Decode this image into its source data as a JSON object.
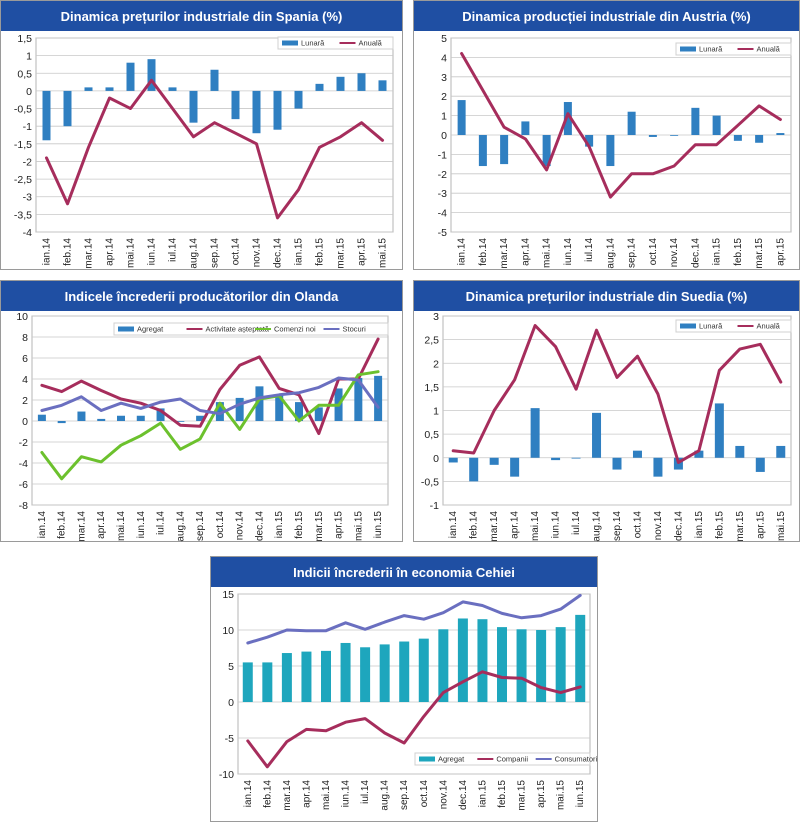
{
  "colors": {
    "header": "#1f4fa3",
    "blue_bar": "#2f7fc1",
    "cyan_bar": "#1ea6bd",
    "maroon": "#a62d5c",
    "green": "#6cc12d",
    "slate": "#6a6fc0",
    "grid": "#c8c8c8"
  },
  "chart_data": [
    {
      "id": "spain",
      "type": "bar+line",
      "title": "Dinamica prețurilor industriale din Spania (%)",
      "categories": [
        "ian.14",
        "feb.14",
        "mar.14",
        "apr.14",
        "mai.14",
        "iun.14",
        "iul.14",
        "aug.14",
        "sep.14",
        "oct.14",
        "nov.14",
        "dec.14",
        "ian.15",
        "feb.15",
        "mar.15",
        "apr.15",
        "mai.15"
      ],
      "x_tick_labels": [
        "ian.14",
        "feb.14",
        "mar.14",
        "apr.14",
        "mai.14",
        "iun.14",
        "iul.14",
        "aug.14",
        "sep.14",
        "oct.14",
        "nov.14",
        "dec.14",
        "ian.15",
        "feb.15",
        "mar.15",
        "apr.15",
        "mai.15"
      ],
      "y_ticks": [
        "1,5",
        "1",
        "0,5",
        "0",
        "-0,5",
        "-1",
        "-1,5",
        "-2",
        "-2,5",
        "-3",
        "-3,5",
        "-4"
      ],
      "ylim": [
        -4,
        1.5
      ],
      "legend": [
        "Lunară",
        "Anuală"
      ],
      "bars": [
        {
          "name": "Lunară",
          "values": [
            -1.4,
            -1.0,
            0.1,
            0.1,
            0.8,
            0.9,
            0.1,
            -0.9,
            0.6,
            -0.8,
            -1.2,
            -1.1,
            -0.5,
            0.2,
            0.4,
            0.5,
            0.3
          ]
        }
      ],
      "lines": [
        {
          "name": "Anuală",
          "values": [
            -1.9,
            -3.2,
            -1.6,
            -0.2,
            -0.5,
            0.3,
            -0.5,
            -1.3,
            -0.9,
            -1.2,
            -1.5,
            -3.6,
            -2.8,
            -1.6,
            -1.3,
            -0.9,
            -1.4
          ]
        }
      ]
    },
    {
      "id": "austria",
      "type": "bar+line",
      "title": "Dinamica producției industriale din Austria (%)",
      "categories": [
        "ian.14",
        "feb.14",
        "mar.14",
        "apr.14",
        "mai.14",
        "iun.14",
        "iul.14",
        "aug.14",
        "sep.14",
        "oct.14",
        "nov.14",
        "dec.14",
        "ian.15",
        "feb.15",
        "mar.15",
        "apr.15"
      ],
      "x_tick_labels": [
        "ian.14",
        "feb.14",
        "mar.14",
        "apr.14",
        "mai.14",
        "iun.14",
        "iul.14",
        "aug.14",
        "sep.14",
        "oct.14",
        "nov.14",
        "dec.14",
        "ian.15",
        "feb.15",
        "mar.15",
        "apr.15"
      ],
      "y_ticks": [
        "5",
        "4",
        "3",
        "2",
        "1",
        "0",
        "-1",
        "-2",
        "-3",
        "-4",
        "-5"
      ],
      "ylim": [
        -5,
        5
      ],
      "legend": [
        "Lunară",
        "Anuală"
      ],
      "bars": [
        {
          "name": "Lunară",
          "values": [
            1.8,
            -1.6,
            -1.5,
            0.7,
            -1.6,
            1.7,
            -0.6,
            -1.6,
            1.2,
            -0.1,
            0.0,
            1.4,
            1.0,
            -0.3,
            -0.4,
            0.1
          ]
        }
      ],
      "lines": [
        {
          "name": "Anuală",
          "values": [
            4.2,
            2.3,
            0.4,
            -0.2,
            -1.8,
            1.1,
            -0.6,
            -3.2,
            -2.0,
            -2.0,
            -1.6,
            -0.5,
            -0.5,
            0.5,
            1.5,
            0.8
          ]
        }
      ]
    },
    {
      "id": "olanda",
      "type": "bar+line",
      "title": "Indicele încrederii producătorilor din Olanda",
      "categories": [
        "ian.14",
        "feb.14",
        "mar.14",
        "apr.14",
        "mai.14",
        "iun.14",
        "iul.14",
        "aug.14",
        "sep.14",
        "oct.14",
        "nov.14",
        "dec.14",
        "ian.15",
        "feb.15",
        "mar.15",
        "apr.15",
        "mai.15",
        "iun.15"
      ],
      "x_tick_labels": [
        "ian.14",
        "feb.14",
        "mar.14",
        "apr.14",
        "mai.14",
        "iun.14",
        "iul.14",
        "aug.14",
        "sep.14",
        "oct.14",
        "nov.14",
        "dec.14",
        "ian.15",
        "feb.15",
        "mar.15",
        "apr.15",
        "mai.15",
        "iun.15"
      ],
      "y_ticks": [
        "10",
        "8",
        "6",
        "4",
        "2",
        "0",
        "-2",
        "-4",
        "-6",
        "-8"
      ],
      "ylim": [
        -8,
        10
      ],
      "legend": [
        "Agregat",
        "Activitate așteptată",
        "Comenzi noi",
        "Stocuri"
      ],
      "bars": [
        {
          "name": "Agregat",
          "values": [
            0.6,
            -0.2,
            0.9,
            0.2,
            0.5,
            0.5,
            1.2,
            0.0,
            0.5,
            1.8,
            2.2,
            3.3,
            2.5,
            1.8,
            1.3,
            3.1,
            4.1,
            4.3
          ]
        }
      ],
      "lines": [
        {
          "name": "Activitate așteptată",
          "values": [
            3.4,
            2.8,
            3.8,
            2.9,
            2.1,
            1.7,
            1.0,
            -0.4,
            -0.5,
            3.0,
            5.3,
            6.1,
            3.1,
            2.5,
            -1.2,
            4.0,
            4.0,
            7.8
          ]
        },
        {
          "name": "Comenzi noi",
          "values": [
            -3.0,
            -5.5,
            -3.4,
            -3.9,
            -2.3,
            -1.4,
            -0.2,
            -2.7,
            -1.7,
            1.7,
            -0.8,
            2.1,
            2.4,
            0.0,
            1.5,
            1.5,
            4.4,
            4.7
          ]
        },
        {
          "name": "Stocuri",
          "values": [
            1.0,
            1.5,
            2.3,
            1.0,
            1.7,
            1.2,
            1.8,
            2.1,
            1.0,
            0.7,
            1.6,
            2.2,
            2.5,
            2.7,
            3.2,
            4.1,
            3.9,
            1.3
          ]
        }
      ]
    },
    {
      "id": "suedia",
      "type": "bar+line",
      "title": "Dinamica prețurilor industriale din Suedia (%)",
      "categories": [
        "ian.14",
        "feb.14",
        "mar.14",
        "apr.14",
        "mai.14",
        "iun.14",
        "iul.14",
        "aug.14",
        "sep.14",
        "oct.14",
        "nov.14",
        "dec.14",
        "ian.15",
        "feb.15",
        "mar.15",
        "apr.15",
        "mai.15"
      ],
      "x_tick_labels": [
        "ian.14",
        "feb.14",
        "mar.14",
        "apr.14",
        "mai.14",
        "iun.14",
        "iul.14",
        "aug.14",
        "sep.14",
        "oct.14",
        "nov.14",
        "dec.14",
        "ian.15",
        "feb.15",
        "mar.15",
        "apr.15",
        "mai.15"
      ],
      "y_ticks": [
        "3",
        "2,5",
        "2",
        "1,5",
        "1",
        "0,5",
        "0",
        "-0,5",
        "-1"
      ],
      "ylim": [
        -1,
        3
      ],
      "legend": [
        "Lunară",
        "Anuală"
      ],
      "bars": [
        {
          "name": "Lunară",
          "values": [
            -0.1,
            -0.5,
            -0.15,
            -0.4,
            1.05,
            -0.05,
            0.0,
            0.95,
            -0.25,
            0.15,
            -0.4,
            -0.25,
            0.15,
            1.15,
            0.25,
            -0.3,
            0.25
          ]
        }
      ],
      "lines": [
        {
          "name": "Anuală",
          "values": [
            0.15,
            0.1,
            1.0,
            1.65,
            2.8,
            2.35,
            1.45,
            2.7,
            1.7,
            2.15,
            1.35,
            -0.1,
            0.15,
            1.85,
            2.3,
            2.4,
            1.6
          ]
        }
      ]
    },
    {
      "id": "cehia",
      "type": "bar+line",
      "title": "Indicii încrederii în economia Cehiei",
      "categories": [
        "ian.14",
        "feb.14",
        "mar.14",
        "apr.14",
        "mai.14",
        "iun.14",
        "iul.14",
        "aug.14",
        "sep.14",
        "oct.14",
        "nov.14",
        "dec.14",
        "ian.15",
        "feb.15",
        "mar.15",
        "apr.15",
        "mai.15",
        "iun.15"
      ],
      "x_tick_labels": [
        "ian.14",
        "feb.14",
        "mar.14",
        "apr.14",
        "mai.14",
        "iun.14",
        "iul.14",
        "aug.14",
        "sep.14",
        "oct.14",
        "nov.14",
        "dec.14",
        "ian.15",
        "feb.15",
        "mar.15",
        "apr.15",
        "mai.15",
        "iun.15"
      ],
      "y_ticks": [
        "15",
        "10",
        "5",
        "0",
        "-5",
        "-10"
      ],
      "ylim": [
        -10,
        15
      ],
      "legend": [
        "Agregat",
        "Companii",
        "Consumatori"
      ],
      "bars": [
        {
          "name": "Agregat",
          "values": [
            5.5,
            5.5,
            6.8,
            7.0,
            7.1,
            8.2,
            7.6,
            8.0,
            8.4,
            8.8,
            10.1,
            11.6,
            11.5,
            10.4,
            10.1,
            10.0,
            10.4,
            12.1
          ]
        }
      ],
      "lines": [
        {
          "name": "Companii",
          "values": [
            -5.4,
            -9.0,
            -5.5,
            -3.8,
            -4.0,
            -2.8,
            -2.3,
            -4.3,
            -5.7,
            -2.0,
            1.3,
            2.8,
            4.2,
            3.4,
            3.3,
            2.0,
            1.3,
            2.1
          ]
        },
        {
          "name": "Consumatori",
          "values": [
            8.2,
            9.0,
            10.0,
            9.9,
            9.9,
            11.0,
            10.1,
            11.1,
            12.0,
            11.5,
            12.4,
            13.9,
            13.4,
            12.3,
            11.7,
            12.0,
            12.9,
            14.8
          ]
        }
      ]
    }
  ]
}
